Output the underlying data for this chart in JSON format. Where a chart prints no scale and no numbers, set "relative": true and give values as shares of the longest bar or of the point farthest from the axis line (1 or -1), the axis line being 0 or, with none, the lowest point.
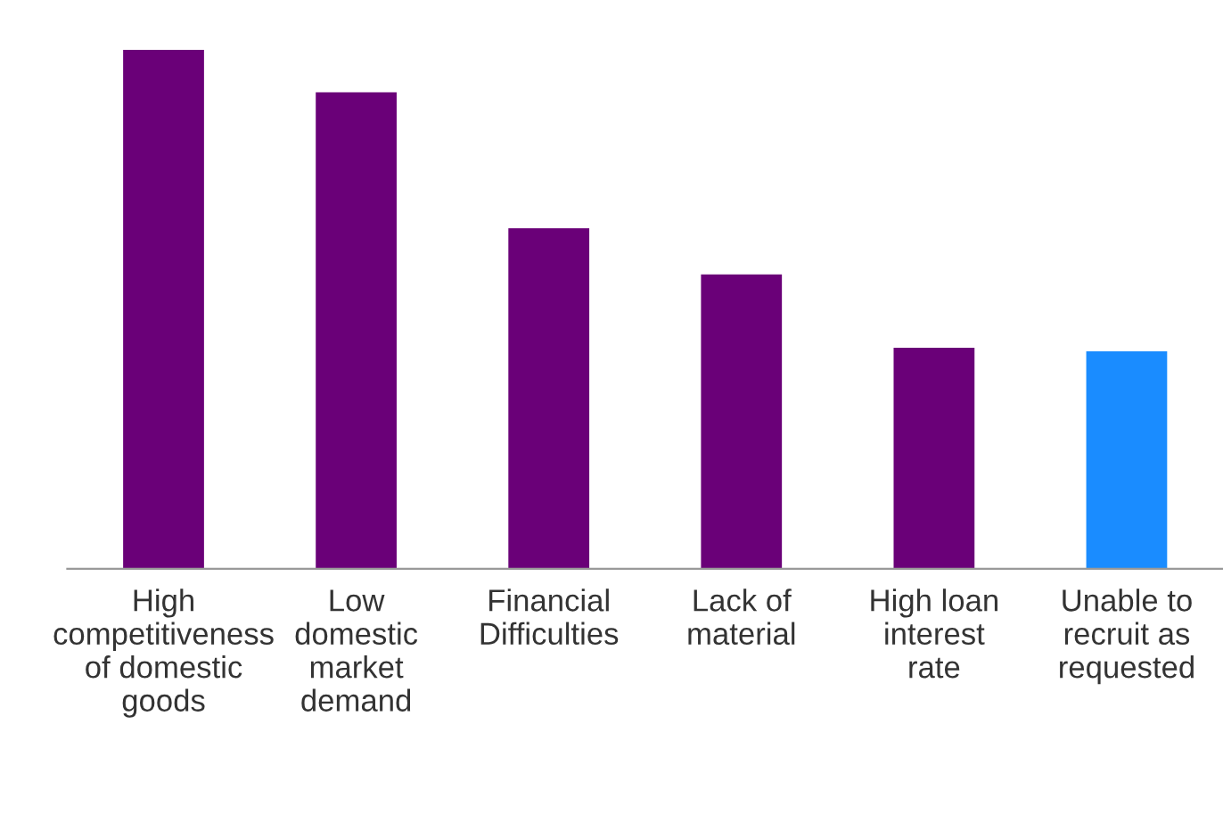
{
  "chart_data": {
    "type": "bar",
    "relative": true,
    "categories": [
      "High\ncompetitiveness\nof domestic\ngoods",
      "Low\ndomestic\nmarket\ndemand",
      "Financial\nDifficulties",
      "Lack of\nmaterial",
      "High loan\ninterest\nrate",
      "Unable to\nrecruit as\nrequested"
    ],
    "values": [
      1,
      0.918,
      0.656,
      0.567,
      0.426,
      0.419
    ],
    "colors": [
      "#6a0078",
      "#6a0078",
      "#6a0078",
      "#6a0078",
      "#6a0078",
      "#1a8cff"
    ],
    "grid": false,
    "legend": false
  }
}
